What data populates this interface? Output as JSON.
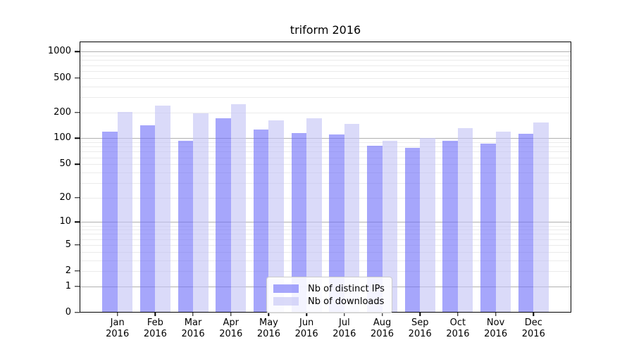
{
  "title": "triform 2016",
  "chart_data": {
    "type": "bar",
    "title": "triform 2016",
    "y_scale": "log1p",
    "ylim": [
      0,
      1310
    ],
    "y_ticks": [
      0,
      1,
      2,
      5,
      10,
      20,
      50,
      100,
      200,
      500,
      1000
    ],
    "grid": true,
    "legend_position": "lower-center",
    "categories": [
      "Jan",
      "Feb",
      "Mar",
      "Apr",
      "May",
      "Jun",
      "Jul",
      "Aug",
      "Sep",
      "Oct",
      "Nov",
      "Dec"
    ],
    "category_year": "2016",
    "series": [
      {
        "name": "Nb of distinct IPs",
        "color": "rgba(112,112,248,0.62)",
        "values": [
          119,
          141,
          94,
          170,
          126,
          115,
          110,
          82,
          78,
          93,
          86,
          112
        ]
      },
      {
        "name": "Nb of downloads",
        "color": "rgba(196,196,246,0.62)",
        "values": [
          201,
          238,
          196,
          250,
          162,
          172,
          147,
          94,
          101,
          132,
          120,
          152
        ]
      }
    ]
  }
}
